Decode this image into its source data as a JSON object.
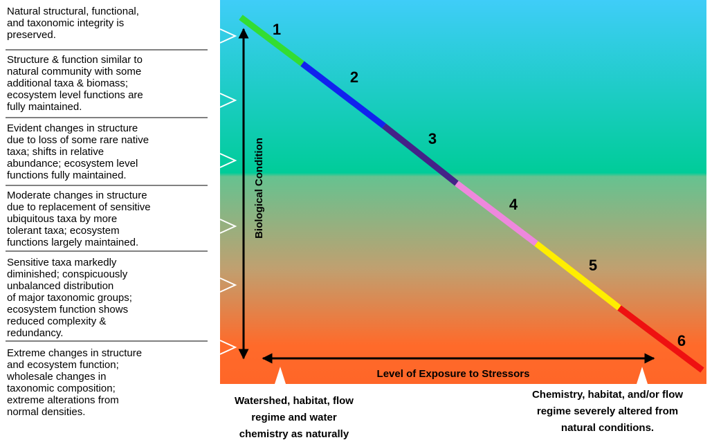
{
  "levels": [
    {
      "number": "1",
      "description": [
        "Natural structural, functional,",
        "and taxonomic integrity is",
        "preserved."
      ]
    },
    {
      "number": "2",
      "description": [
        "Structure & function similar to",
        "natural community with some",
        "additional taxa & biomass;",
        "ecosystem level functions are",
        "fully maintained."
      ]
    },
    {
      "number": "3",
      "description": [
        "Evident changes in structure",
        "due to loss of some rare native",
        "taxa; shifts in relative",
        "abundance; ecosystem level",
        "functions fully maintained."
      ]
    },
    {
      "number": "4",
      "description": [
        "Moderate changes in structure",
        "due to replacement of sensitive",
        "ubiquitous taxa by more",
        "tolerant taxa; ecosystem",
        "functions largely maintained."
      ]
    },
    {
      "number": "5",
      "description": [
        "Sensitive taxa markedly",
        "diminished; conspicuously",
        "unbalanced distribution",
        "of major taxonomic groups;",
        "ecosystem function shows",
        "reduced complexity &",
        "redundancy."
      ]
    },
    {
      "number": "6",
      "description": [
        "Extreme changes in structure",
        "and ecosystem function;",
        "wholesale changes in",
        "taxonomic composition;",
        "extreme alterations from",
        "normal densities."
      ]
    }
  ],
  "y_axis_label": "Biological Condition",
  "x_axis_label": "Level of Exposure to Stressors",
  "left_note": [
    "Watershed, habitat, flow",
    "regime and water",
    "chemistry as naturally"
  ],
  "right_note": [
    "Chemistry, habitat, and/or flow",
    "regime severely altered from",
    "natural conditions."
  ]
}
